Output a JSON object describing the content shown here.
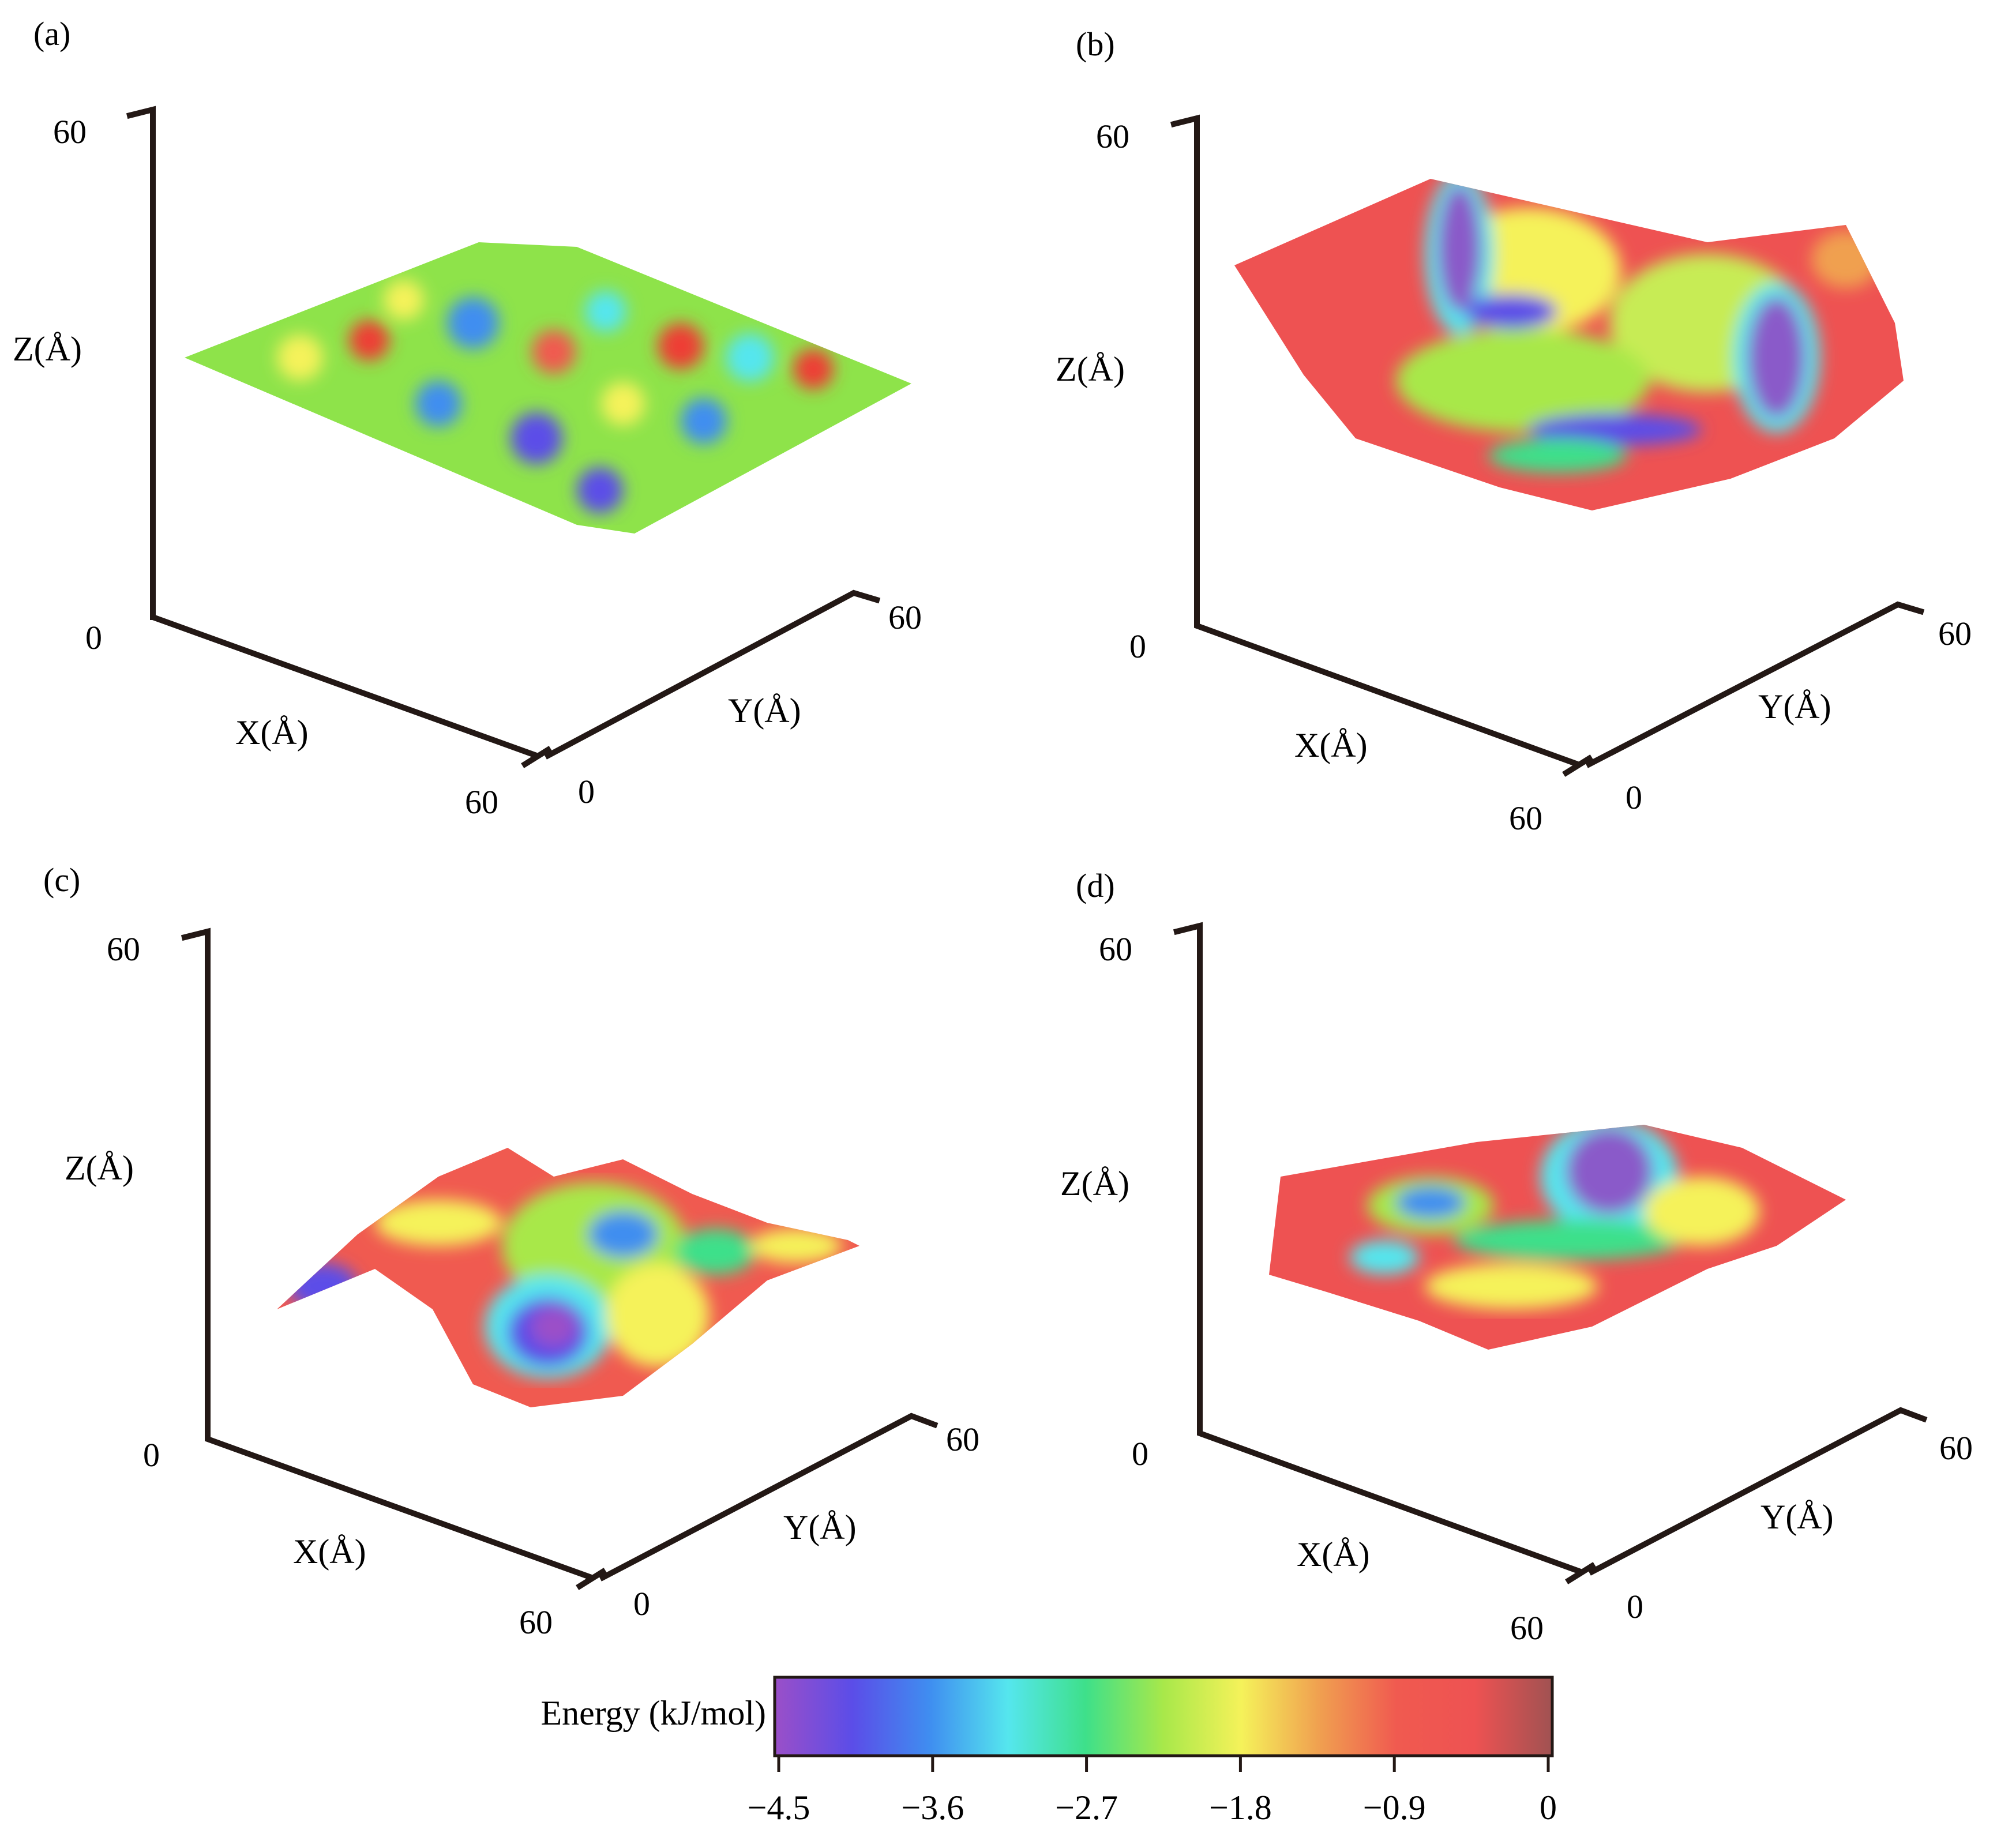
{
  "panels": [
    {
      "label": "(a)",
      "axes": {
        "x_label": "X(Å)",
        "y_label": "Y(Å)",
        "z_label": "Z(Å)",
        "x_range": [
          0,
          60
        ],
        "y_range": [
          0,
          60
        ],
        "z_range": [
          0,
          60
        ],
        "z_tick_top": "60",
        "origin_tick": "0",
        "x_tick_end": "60",
        "y_tick_start": "0",
        "y_tick_end": "60"
      },
      "surface": {
        "shape": "flat sheet",
        "mean_energy": -2.6
      }
    },
    {
      "label": "(b)",
      "axes": {
        "x_label": "X(Å)",
        "y_label": "Y(Å)",
        "z_label": "Z(Å)",
        "x_range": [
          0,
          60
        ],
        "y_range": [
          0,
          60
        ],
        "z_range": [
          0,
          60
        ],
        "z_tick_top": "60",
        "origin_tick": "0",
        "x_tick_end": "60",
        "y_tick_start": "0",
        "y_tick_end": "60"
      },
      "surface": {
        "shape": "bowl",
        "mean_energy": -1.2
      }
    },
    {
      "label": "(c)",
      "axes": {
        "x_label": "X(Å)",
        "y_label": "Y(Å)",
        "z_label": "Z(Å)",
        "x_range": [
          0,
          60
        ],
        "y_range": [
          0,
          60
        ],
        "z_range": [
          0,
          60
        ],
        "z_tick_top": "60",
        "origin_tick": "0",
        "x_tick_end": "60",
        "y_tick_start": "0",
        "y_tick_end": "60"
      },
      "surface": {
        "shape": "rippled basin",
        "mean_energy": -1.6
      }
    },
    {
      "label": "(d)",
      "axes": {
        "x_label": "X(Å)",
        "y_label": "Y(Å)",
        "z_label": "Z(Å)",
        "x_range": [
          0,
          60
        ],
        "y_range": [
          0,
          60
        ],
        "z_range": [
          0,
          60
        ],
        "z_tick_top": "60",
        "origin_tick": "0",
        "x_tick_end": "60",
        "y_tick_start": "0",
        "y_tick_end": "60"
      },
      "surface": {
        "shape": "shallow bowl",
        "mean_energy": -0.8
      }
    }
  ],
  "chart_data": {
    "type": "heatmap",
    "colorbar": {
      "label": "Energy (kJ/mol)",
      "min": -4.5,
      "max": 0,
      "ticks": [
        "−4.5",
        "−3.6",
        "−2.7",
        "−1.8",
        "−0.9",
        "0"
      ],
      "tick_values": [
        -4.5,
        -3.6,
        -2.7,
        -1.8,
        -0.9,
        0
      ],
      "colors": [
        "#9b4fc8",
        "#5b4de8",
        "#3f8ef0",
        "#55e6ee",
        "#3ee08a",
        "#a8e84a",
        "#f5f25a",
        "#f0a050",
        "#f05a50",
        "#ee5252",
        "#a05252"
      ]
    }
  }
}
